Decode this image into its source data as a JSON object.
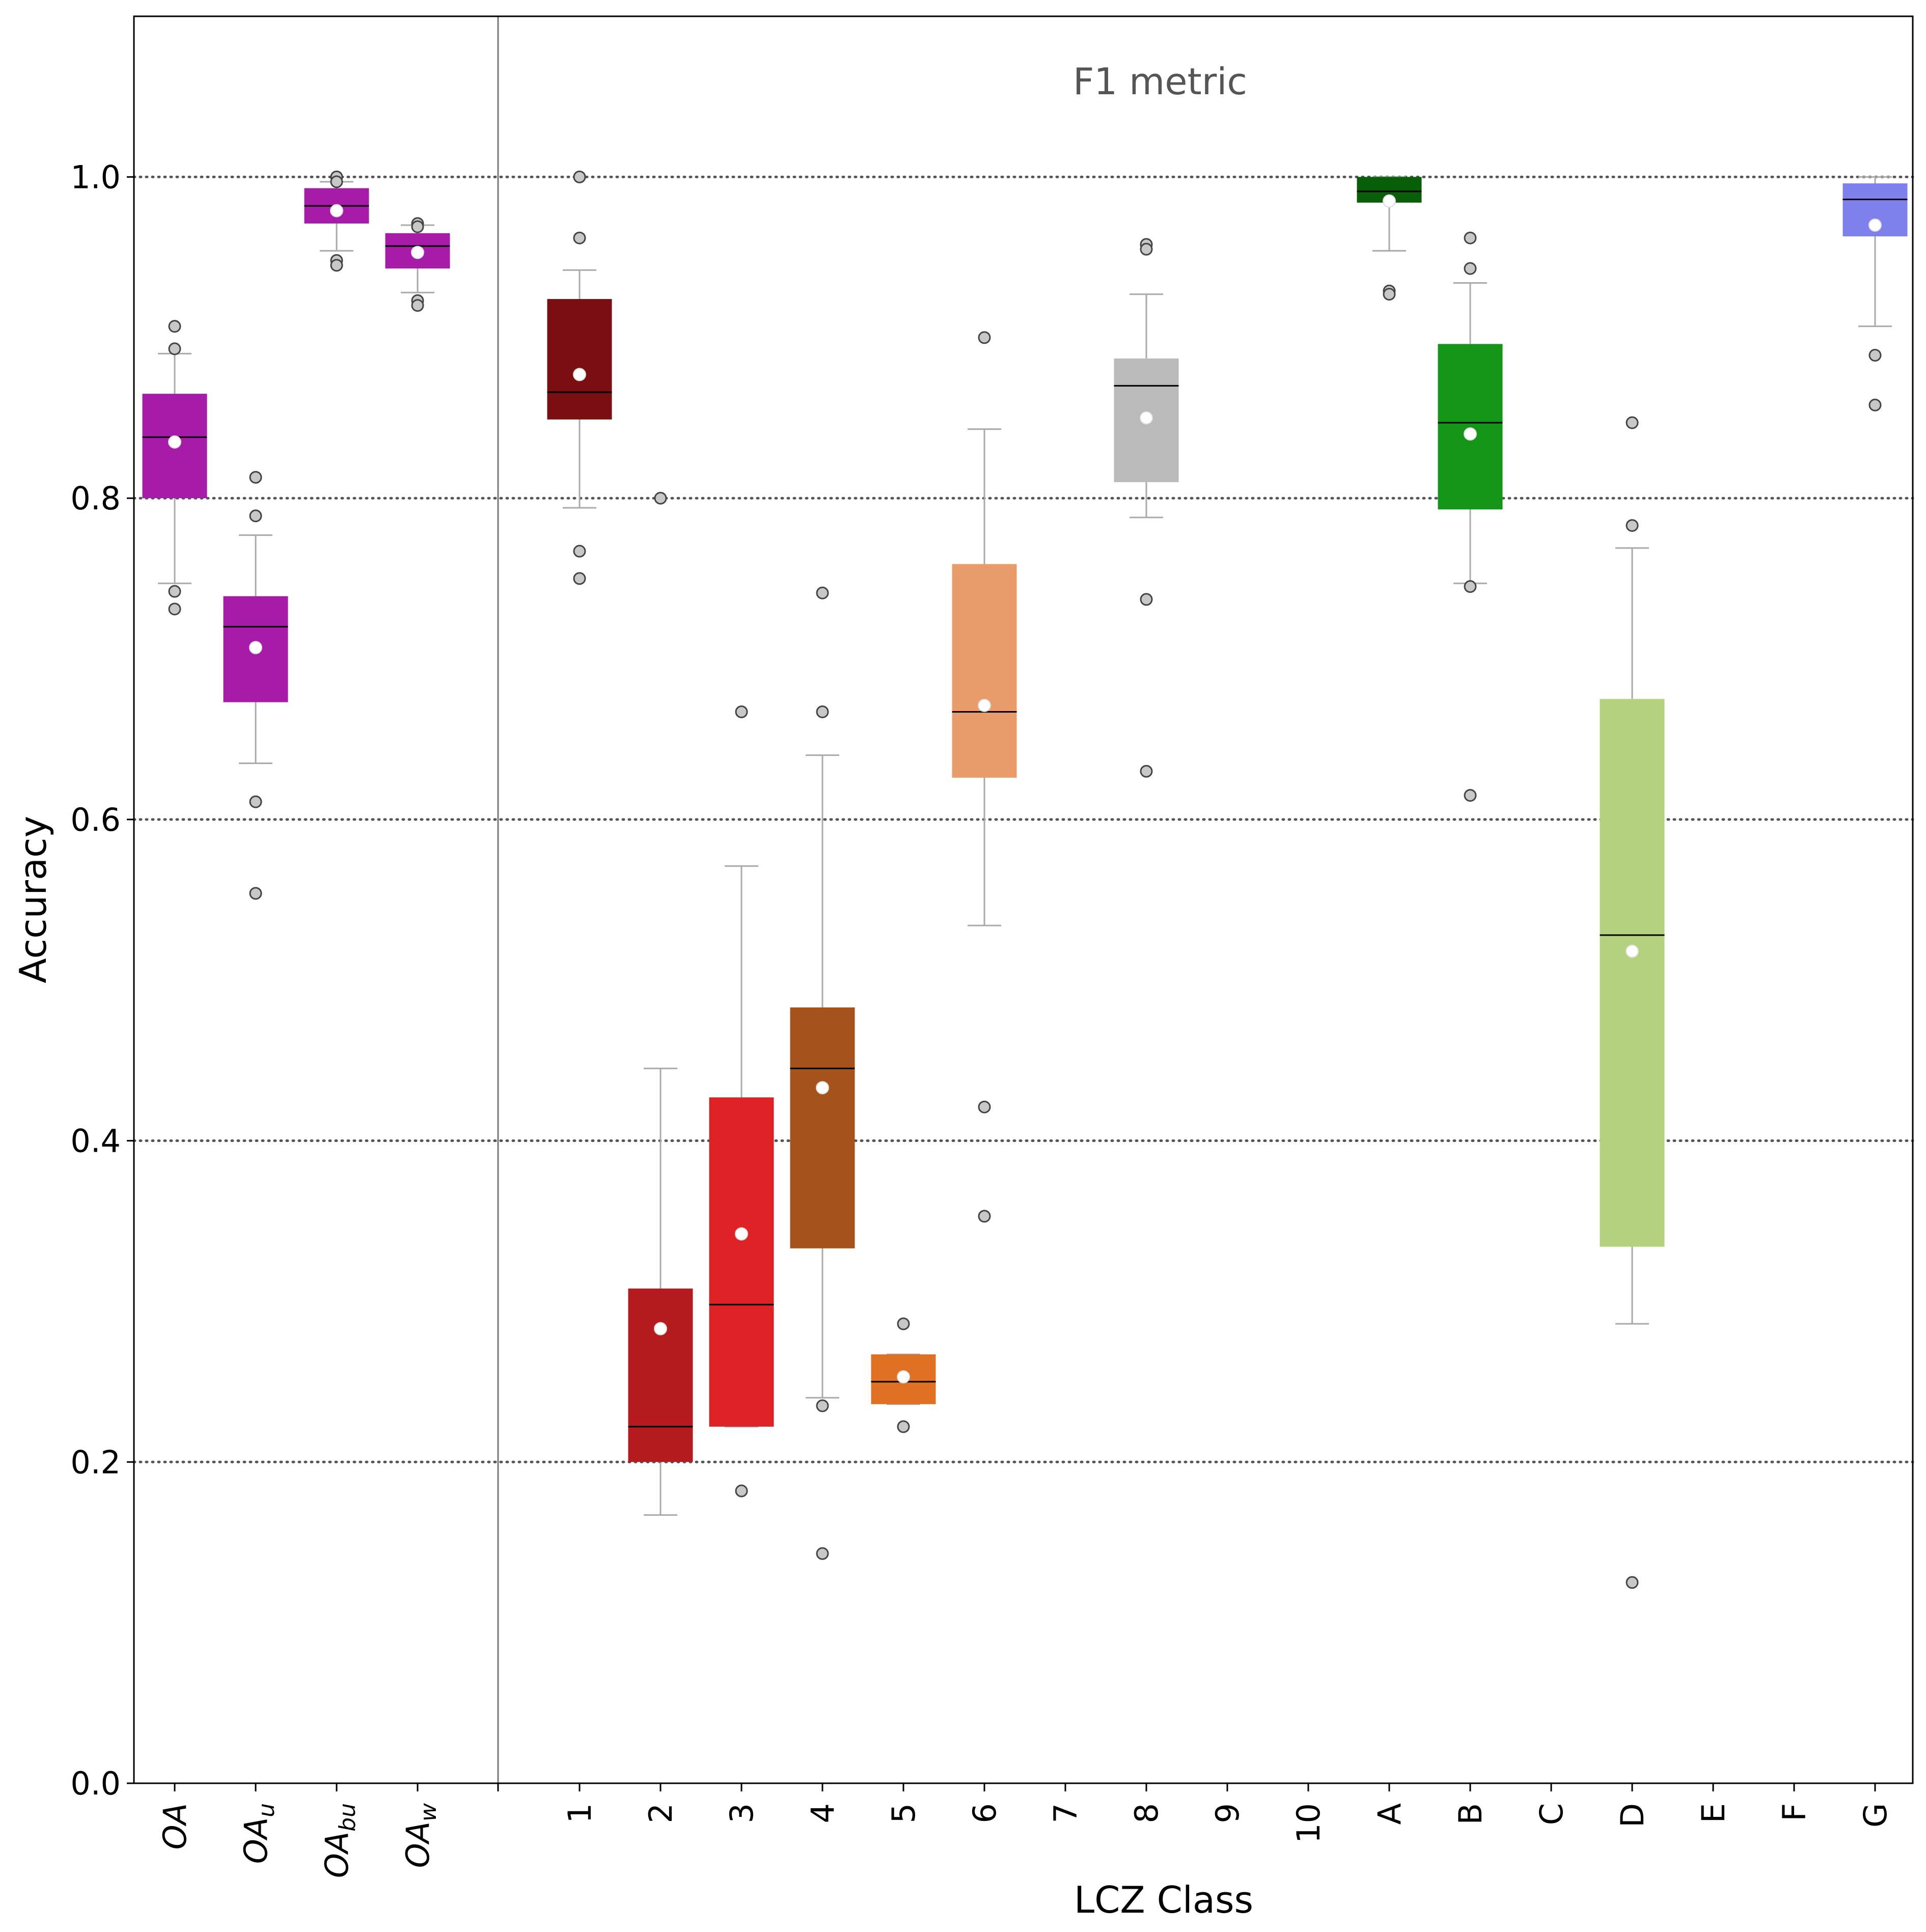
{
  "chart_data": {
    "type": "box",
    "annotation": "F1 metric",
    "xlabel": "LCZ Class",
    "ylabel": "Accuracy",
    "ylim": [
      0,
      1.1
    ],
    "yticks": [
      0.0,
      0.2,
      0.4,
      0.6,
      0.8,
      1.0
    ],
    "ytick_labels": [
      "0.0",
      "0.2",
      "0.4",
      "0.6",
      "0.8",
      "1.0"
    ],
    "grid": "horizontal dotted at 0.2, 0.4, 0.6, 0.8, 1.0",
    "overall_group": [
      {
        "label": "OA",
        "sub": "",
        "color": "#a61ca8",
        "q1": 0.8,
        "median": 0.838,
        "q3": 0.865,
        "wlow": 0.747,
        "whigh": 0.89,
        "mean": 0.835,
        "outliers": [
          0.907,
          0.893,
          0.742,
          0.731
        ]
      },
      {
        "label": "OA",
        "sub": "u",
        "color": "#a61ca8",
        "q1": 0.673,
        "median": 0.72,
        "q3": 0.739,
        "wlow": 0.635,
        "whigh": 0.777,
        "mean": 0.707,
        "outliers": [
          0.813,
          0.789,
          0.611,
          0.554
        ]
      },
      {
        "label": "OA",
        "sub": "bu",
        "color": "#a61ca8",
        "q1": 0.971,
        "median": 0.982,
        "q3": 0.993,
        "wlow": 0.954,
        "whigh": 0.997,
        "mean": 0.979,
        "outliers": [
          1.0,
          0.997,
          0.948,
          0.945
        ]
      },
      {
        "label": "OA",
        "sub": "w",
        "color": "#a61ca8",
        "q1": 0.943,
        "median": 0.957,
        "q3": 0.965,
        "wlow": 0.928,
        "whigh": 0.97,
        "mean": 0.953,
        "outliers": [
          0.971,
          0.969,
          0.923,
          0.92
        ]
      }
    ],
    "categories": [
      "1",
      "2",
      "3",
      "4",
      "5",
      "6",
      "7",
      "8",
      "9",
      "10",
      "A",
      "B",
      "C",
      "D",
      "E",
      "F",
      "G"
    ],
    "series": [
      {
        "category": "1",
        "color": "#7a0f12",
        "q1": 0.849,
        "median": 0.866,
        "q3": 0.924,
        "wlow": 0.794,
        "whigh": 0.942,
        "mean": 0.877,
        "outliers": [
          1.0,
          0.962,
          0.767,
          0.75
        ]
      },
      {
        "category": "2",
        "color": "#b51a1e",
        "q1": 0.2,
        "median": 0.222,
        "q3": 0.308,
        "wlow": 0.167,
        "whigh": 0.445,
        "mean": 0.283,
        "outliers": [
          0.8
        ]
      },
      {
        "category": "3",
        "color": "#de2225",
        "q1": 0.222,
        "median": 0.298,
        "q3": 0.427,
        "wlow": 0.222,
        "whigh": 0.571,
        "mean": 0.342,
        "outliers": [
          0.667,
          0.182
        ]
      },
      {
        "category": "4",
        "color": "#a6521c",
        "q1": 0.333,
        "median": 0.445,
        "q3": 0.483,
        "wlow": 0.24,
        "whigh": 0.64,
        "mean": 0.433,
        "outliers": [
          0.741,
          0.667,
          0.235,
          0.143
        ]
      },
      {
        "category": "5",
        "color": "#e07024",
        "q1": 0.236,
        "median": 0.25,
        "q3": 0.267,
        "wlow": 0.236,
        "whigh": 0.267,
        "mean": 0.253,
        "outliers": [
          0.286,
          0.222
        ]
      },
      {
        "category": "6",
        "color": "#e99c6a",
        "q1": 0.626,
        "median": 0.667,
        "q3": 0.759,
        "wlow": 0.534,
        "whigh": 0.843,
        "mean": 0.671,
        "outliers": [
          0.9,
          0.421,
          0.353
        ]
      },
      {
        "category": "7",
        "color": null
      },
      {
        "category": "8",
        "color": "#bababa",
        "q1": 0.81,
        "median": 0.87,
        "q3": 0.887,
        "wlow": 0.788,
        "whigh": 0.927,
        "mean": 0.85,
        "outliers": [
          0.958,
          0.955,
          0.737,
          0.63
        ]
      },
      {
        "category": "9",
        "color": null
      },
      {
        "category": "10",
        "color": null
      },
      {
        "category": "A",
        "color": "#0a5e0a",
        "q1": 0.984,
        "median": 0.991,
        "q3": 1.0,
        "wlow": 0.954,
        "whigh": 1.0,
        "mean": 0.985,
        "outliers": [
          0.929,
          0.927
        ]
      },
      {
        "category": "B",
        "color": "#159518",
        "q1": 0.793,
        "median": 0.847,
        "q3": 0.896,
        "wlow": 0.747,
        "whigh": 0.934,
        "mean": 0.84,
        "outliers": [
          0.962,
          0.943,
          0.745,
          0.615
        ]
      },
      {
        "category": "C",
        "color": null
      },
      {
        "category": "D",
        "color": "#b4d17f",
        "q1": 0.334,
        "median": 0.528,
        "q3": 0.675,
        "wlow": 0.286,
        "whigh": 0.769,
        "mean": 0.518,
        "outliers": [
          0.847,
          0.783,
          0.125
        ]
      },
      {
        "category": "E",
        "color": null
      },
      {
        "category": "F",
        "color": null
      },
      {
        "category": "G",
        "color": "#8080ec",
        "q1": 0.963,
        "median": 0.986,
        "q3": 0.996,
        "wlow": 0.907,
        "whigh": 1.0,
        "mean": 0.97,
        "outliers": [
          0.889,
          0.858
        ]
      }
    ]
  }
}
